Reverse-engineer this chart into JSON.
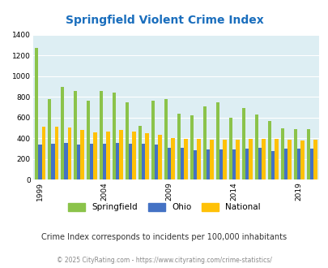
{
  "title": "Springfield Violent Crime Index",
  "subtitle": "Crime Index corresponds to incidents per 100,000 inhabitants",
  "footer": "© 2025 CityRating.com - https://www.cityrating.com/crime-statistics/",
  "years": [
    1999,
    2000,
    2001,
    2002,
    2003,
    2004,
    2005,
    2006,
    2007,
    2008,
    2009,
    2010,
    2011,
    2012,
    2013,
    2014,
    2015,
    2016,
    2017,
    2018,
    2019,
    2020
  ],
  "springfield": [
    1275,
    780,
    900,
    860,
    760,
    860,
    845,
    745,
    520,
    760,
    780,
    640,
    620,
    710,
    750,
    600,
    695,
    630,
    565,
    495,
    490,
    490
  ],
  "ohio": [
    335,
    350,
    355,
    335,
    345,
    350,
    355,
    350,
    350,
    335,
    310,
    305,
    280,
    295,
    295,
    290,
    300,
    305,
    275,
    300,
    300,
    300
  ],
  "national": [
    510,
    510,
    500,
    480,
    460,
    465,
    480,
    465,
    450,
    435,
    405,
    395,
    395,
    385,
    385,
    385,
    390,
    395,
    390,
    385,
    380,
    385
  ],
  "springfield_color": "#8bc34a",
  "ohio_color": "#4472c4",
  "national_color": "#ffc107",
  "bg_color": "#ddeef3",
  "title_color": "#1a6ebd",
  "ylim": [
    0,
    1400
  ],
  "yticks": [
    0,
    200,
    400,
    600,
    800,
    1000,
    1200,
    1400
  ],
  "tick_years": [
    1999,
    2004,
    2009,
    2014,
    2019
  ]
}
